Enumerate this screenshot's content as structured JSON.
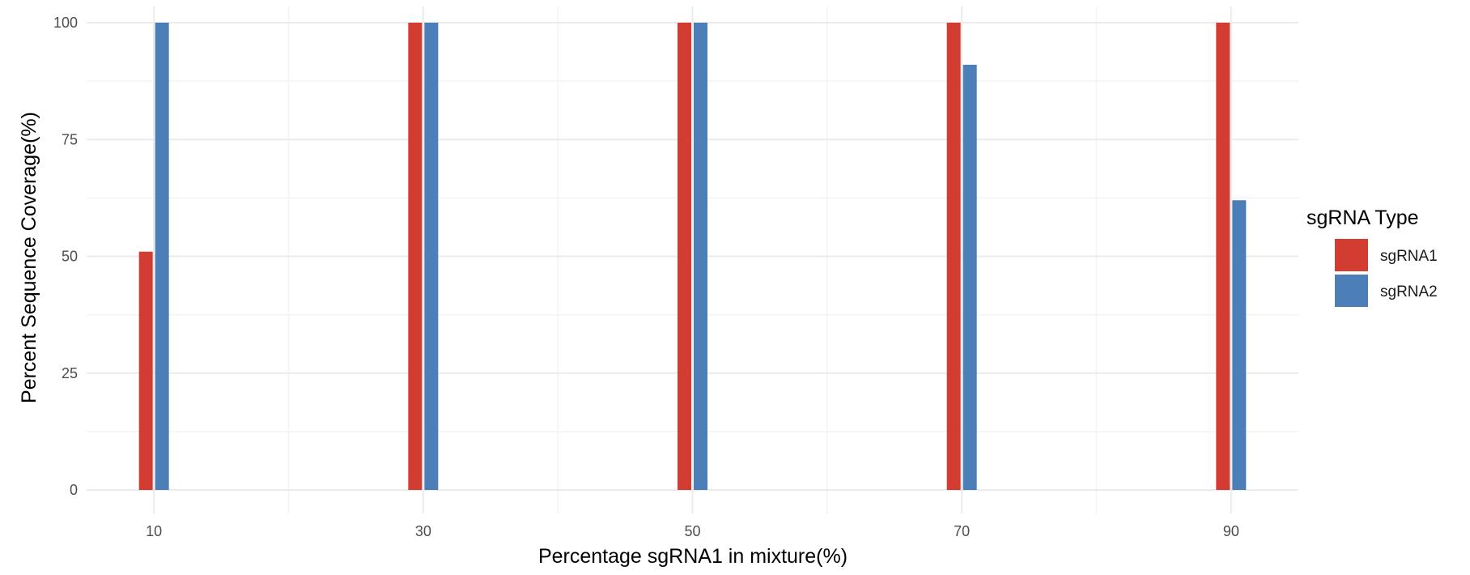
{
  "chart_data": {
    "type": "bar",
    "x": [
      10,
      30,
      50,
      70,
      90
    ],
    "x_tick_labels": [
      "10",
      "30",
      "50",
      "70",
      "90"
    ],
    "y_tick_labels": [
      "0",
      "25",
      "50",
      "75",
      "100"
    ],
    "xlabel": "Percentage sgRNA1 in mixture(%)",
    "ylabel": "Percent Sequence Coverage(%)",
    "xlim": [
      5,
      95
    ],
    "ylim": [
      0,
      100
    ],
    "grid": true,
    "legend": {
      "title": "sgRNA Type",
      "placement": "right"
    },
    "series": [
      {
        "name": "sgRNA1",
        "color": "#d33c30",
        "values": [
          51,
          100,
          100,
          100,
          100
        ]
      },
      {
        "name": "sgRNA2",
        "color": "#4c7fb8",
        "values": [
          100,
          100,
          100,
          91,
          62
        ]
      }
    ]
  }
}
